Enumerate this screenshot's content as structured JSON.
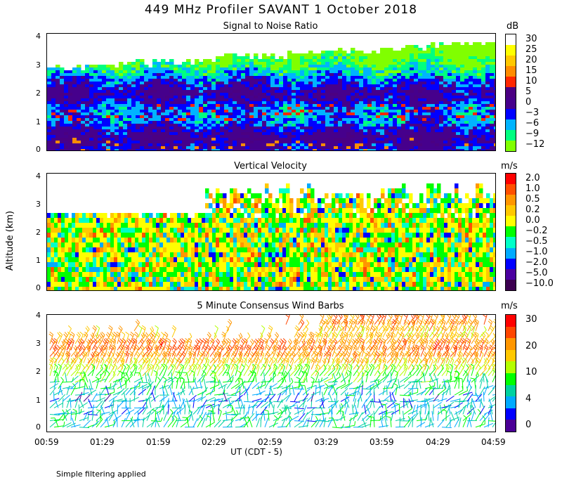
{
  "figure": {
    "title": "449 MHz Profiler SAVANT  1 October 2018",
    "ylabel": "Altitude (km)",
    "xlabel": "UT  (CDT - 5)",
    "footnote": "Simple filtering applied",
    "x_ticks": [
      "00:59",
      "01:29",
      "01:59",
      "02:29",
      "02:59",
      "03:29",
      "03:59",
      "04:29",
      "04:59"
    ]
  },
  "chart_data": [
    {
      "type": "heatmap",
      "title": "Signal to Noise Ratio",
      "unit": "dB",
      "x_range": [
        "00:59",
        "04:59"
      ],
      "ylim": [
        0,
        4
      ],
      "y_ticks": [
        "0",
        "1",
        "2",
        "3",
        "4"
      ],
      "colorbar": {
        "labels": [
          "30",
          "25",
          "20",
          "15",
          "10",
          "5",
          "0",
          "−3",
          "−6",
          "−9",
          "−12"
        ],
        "colors": [
          "#ffffff",
          "#ffff00",
          "#ffc800",
          "#ff8c00",
          "#ff2800",
          "#4b0082",
          "#46008c",
          "#0000ff",
          "#00b4ff",
          "#00ff80",
          "#80ff00"
        ]
      },
      "profile": [
        {
          "alt": 0.1,
          "snr": 0
        },
        {
          "alt": 0.5,
          "snr": 3
        },
        {
          "alt": 1.0,
          "snr": -3
        },
        {
          "alt": 1.5,
          "snr": -3
        },
        {
          "alt": 2.0,
          "snr": 2
        },
        {
          "alt": 2.5,
          "snr": -3
        },
        {
          "alt": 3.0,
          "snr": -9
        },
        {
          "alt": 3.5,
          "snr": -12
        }
      ]
    },
    {
      "type": "heatmap",
      "title": "Vertical Velocity",
      "unit": "m/s",
      "x_range": [
        "00:59",
        "04:59"
      ],
      "ylim": [
        0,
        4
      ],
      "y_ticks": [
        "0",
        "1",
        "2",
        "3",
        "4"
      ],
      "colorbar": {
        "labels": [
          "2.0",
          "1.0",
          "0.5",
          "0.2",
          "0.0",
          "−0.2",
          "−0.5",
          "−1.0",
          "−2.0",
          "−5.0",
          "−10.0"
        ],
        "colors": [
          "#ff0000",
          "#ff5000",
          "#ff9600",
          "#ffc800",
          "#ffff00",
          "#00ff00",
          "#00ffc8",
          "#00aaff",
          "#0000ff",
          "#4b00a0",
          "#3c0050"
        ]
      },
      "dominant_values": [
        0.0,
        -0.2,
        0.2,
        -0.5
      ]
    },
    {
      "type": "wind_barbs",
      "title": "5 Minute Consensus Wind Barbs",
      "unit": "m/s",
      "x_range": [
        "00:59",
        "04:59"
      ],
      "ylim": [
        0,
        4
      ],
      "y_ticks": [
        "0",
        "1",
        "2",
        "3",
        "4"
      ],
      "colorbar": {
        "labels": [
          "30",
          "20",
          "10",
          "4",
          "0"
        ],
        "colors": [
          "#ff0000",
          "#ff4600",
          "#ff9600",
          "#ffc800",
          "#b4ff00",
          "#00ff00",
          "#00d2a0",
          "#00aaff",
          "#0000ff",
          "#4b0096"
        ]
      },
      "profile": [
        {
          "alt": 0.3,
          "speed": 8
        },
        {
          "alt": 1.0,
          "speed": 5
        },
        {
          "alt": 1.8,
          "speed": 12
        },
        {
          "alt": 2.3,
          "speed": 22
        },
        {
          "alt": 2.7,
          "speed": 28
        },
        {
          "alt": 3.2,
          "speed": 18
        },
        {
          "alt": 3.6,
          "speed": 25
        }
      ]
    }
  ]
}
